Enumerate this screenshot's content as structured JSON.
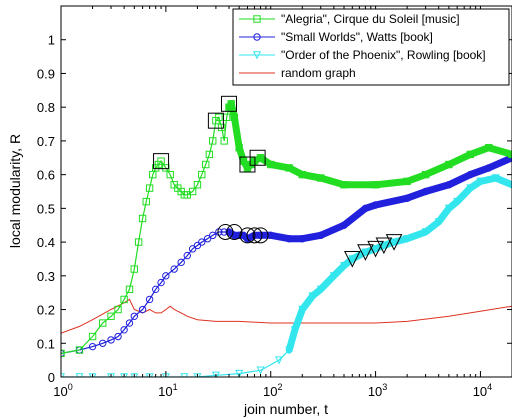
{
  "chart_data": {
    "type": "line",
    "xlabel": "join number, t",
    "ylabel": "local modularity, R",
    "xscale": "log",
    "xlim": [
      1,
      20000
    ],
    "ylim": [
      0,
      1.1
    ],
    "x_ticks": [
      1,
      10,
      100,
      1000,
      10000
    ],
    "x_tick_labels": [
      {
        "base": "10",
        "exp": "0"
      },
      {
        "base": "10",
        "exp": "1"
      },
      {
        "base": "10",
        "exp": "2"
      },
      {
        "base": "10",
        "exp": "3"
      },
      {
        "base": "10",
        "exp": "4"
      }
    ],
    "y_ticks": [
      0,
      0.1,
      0.2,
      0.3,
      0.4,
      0.5,
      0.6,
      0.7,
      0.8,
      0.9,
      1
    ],
    "y_tick_labels": [
      "0",
      "0.1",
      "0.2",
      "0.3",
      "0.4",
      "0.5",
      "0.6",
      "0.7",
      "0.8",
      "0.9",
      "1"
    ],
    "grid": false,
    "legend_position": "top-right",
    "series": [
      {
        "name": "\"Alegria\", Cirque du Soleil [music]",
        "color": "#22dd22",
        "marker": "square",
        "points": [
          [
            1,
            0.07
          ],
          [
            1.5,
            0.08
          ],
          [
            2,
            0.12
          ],
          [
            2.5,
            0.16
          ],
          [
            3,
            0.18
          ],
          [
            3.5,
            0.2
          ],
          [
            4,
            0.23
          ],
          [
            4.5,
            0.26
          ],
          [
            5,
            0.32
          ],
          [
            5.5,
            0.4
          ],
          [
            6,
            0.47
          ],
          [
            6.5,
            0.52
          ],
          [
            7,
            0.56
          ],
          [
            7.5,
            0.6
          ],
          [
            8,
            0.62
          ],
          [
            8.5,
            0.63
          ],
          [
            9,
            0.64
          ],
          [
            10,
            0.62
          ],
          [
            11,
            0.6
          ],
          [
            12,
            0.57
          ],
          [
            13,
            0.56
          ],
          [
            14,
            0.55
          ],
          [
            15,
            0.54
          ],
          [
            16,
            0.54
          ],
          [
            18,
            0.55
          ],
          [
            20,
            0.57
          ],
          [
            22,
            0.6
          ],
          [
            24,
            0.63
          ],
          [
            26,
            0.66
          ],
          [
            28,
            0.7
          ],
          [
            30,
            0.76
          ],
          [
            32,
            0.77
          ],
          [
            34,
            0.74
          ],
          [
            36,
            0.7
          ],
          [
            38,
            0.77
          ],
          [
            40,
            0.8
          ],
          [
            42,
            0.81
          ],
          [
            45,
            0.77
          ],
          [
            50,
            0.68
          ],
          [
            55,
            0.64
          ],
          [
            60,
            0.62
          ],
          [
            65,
            0.63
          ],
          [
            70,
            0.64
          ],
          [
            80,
            0.65
          ],
          [
            100,
            0.63
          ],
          [
            150,
            0.62
          ],
          [
            200,
            0.6
          ],
          [
            300,
            0.59
          ],
          [
            500,
            0.57
          ],
          [
            1000,
            0.57
          ],
          [
            2000,
            0.58
          ],
          [
            3000,
            0.6
          ],
          [
            5000,
            0.63
          ],
          [
            8000,
            0.66
          ],
          [
            12000,
            0.68
          ],
          [
            20000,
            0.66
          ]
        ],
        "highlights": [
          [
            9,
            0.64
          ],
          [
            30,
            0.76
          ],
          [
            40,
            0.81
          ],
          [
            60,
            0.63
          ],
          [
            75,
            0.65
          ]
        ]
      },
      {
        "name": "\"Small Worlds\", Watts [book]",
        "color": "#2020dd",
        "marker": "circle",
        "points": [
          [
            1,
            0.07
          ],
          [
            1.5,
            0.08
          ],
          [
            2,
            0.09
          ],
          [
            2.5,
            0.1
          ],
          [
            3,
            0.11
          ],
          [
            3.5,
            0.12
          ],
          [
            4,
            0.14
          ],
          [
            4.5,
            0.16
          ],
          [
            5,
            0.18
          ],
          [
            6,
            0.2
          ],
          [
            7,
            0.23
          ],
          [
            8,
            0.26
          ],
          [
            9,
            0.28
          ],
          [
            10,
            0.3
          ],
          [
            12,
            0.32
          ],
          [
            14,
            0.34
          ],
          [
            16,
            0.36
          ],
          [
            18,
            0.38
          ],
          [
            20,
            0.39
          ],
          [
            22,
            0.4
          ],
          [
            25,
            0.41
          ],
          [
            28,
            0.42
          ],
          [
            32,
            0.43
          ],
          [
            36,
            0.43
          ],
          [
            40,
            0.43
          ],
          [
            45,
            0.42
          ],
          [
            50,
            0.42
          ],
          [
            55,
            0.42
          ],
          [
            60,
            0.41
          ],
          [
            70,
            0.42
          ],
          [
            80,
            0.42
          ],
          [
            100,
            0.42
          ],
          [
            150,
            0.41
          ],
          [
            200,
            0.41
          ],
          [
            300,
            0.42
          ],
          [
            500,
            0.45
          ],
          [
            800,
            0.5
          ],
          [
            1000,
            0.51
          ],
          [
            2000,
            0.53
          ],
          [
            3000,
            0.55
          ],
          [
            5000,
            0.57
          ],
          [
            8000,
            0.6
          ],
          [
            12000,
            0.62
          ],
          [
            20000,
            0.65
          ]
        ],
        "highlights": [
          [
            37,
            0.43
          ],
          [
            45,
            0.43
          ],
          [
            60,
            0.42
          ],
          [
            70,
            0.42
          ],
          [
            80,
            0.42
          ]
        ]
      },
      {
        "name": "\"Order of the Phoenix\", Rowling [book]",
        "color": "#33e6ee",
        "marker": "triangle-down",
        "points": [
          [
            1,
            0
          ],
          [
            1.5,
            0
          ],
          [
            2,
            0
          ],
          [
            3,
            0
          ],
          [
            4,
            0
          ],
          [
            5,
            0
          ],
          [
            7,
            0
          ],
          [
            10,
            0
          ],
          [
            15,
            0
          ],
          [
            20,
            0
          ],
          [
            30,
            0.005
          ],
          [
            50,
            0.01
          ],
          [
            80,
            0.02
          ],
          [
            120,
            0.05
          ],
          [
            150,
            0.08
          ],
          [
            170,
            0.14
          ],
          [
            200,
            0.2
          ],
          [
            250,
            0.24
          ],
          [
            300,
            0.26
          ],
          [
            400,
            0.3
          ],
          [
            500,
            0.33
          ],
          [
            600,
            0.35
          ],
          [
            800,
            0.37
          ],
          [
            1000,
            0.38
          ],
          [
            1200,
            0.39
          ],
          [
            1500,
            0.4
          ],
          [
            2000,
            0.41
          ],
          [
            3000,
            0.43
          ],
          [
            4000,
            0.46
          ],
          [
            5000,
            0.5
          ],
          [
            6000,
            0.52
          ],
          [
            8000,
            0.56
          ],
          [
            10000,
            0.58
          ],
          [
            14000,
            0.59
          ],
          [
            20000,
            0.57
          ]
        ],
        "highlights": [
          [
            600,
            0.35
          ],
          [
            800,
            0.37
          ],
          [
            1000,
            0.38
          ],
          [
            1200,
            0.39
          ],
          [
            1500,
            0.4
          ]
        ]
      },
      {
        "name": "random graph",
        "color": "#dd3322",
        "marker": "none",
        "points": [
          [
            1,
            0.13
          ],
          [
            1.5,
            0.15
          ],
          [
            2,
            0.17
          ],
          [
            3,
            0.2
          ],
          [
            4,
            0.22
          ],
          [
            4.5,
            0.23
          ],
          [
            5,
            0.2
          ],
          [
            6,
            0.19
          ],
          [
            7,
            0.2
          ],
          [
            8,
            0.19
          ],
          [
            9,
            0.19
          ],
          [
            10,
            0.2
          ],
          [
            11,
            0.21
          ],
          [
            12,
            0.2
          ],
          [
            14,
            0.19
          ],
          [
            16,
            0.18
          ],
          [
            20,
            0.17
          ],
          [
            30,
            0.165
          ],
          [
            50,
            0.165
          ],
          [
            100,
            0.16
          ],
          [
            200,
            0.16
          ],
          [
            500,
            0.16
          ],
          [
            1000,
            0.16
          ],
          [
            2000,
            0.165
          ],
          [
            5000,
            0.18
          ],
          [
            10000,
            0.195
          ],
          [
            20000,
            0.21
          ]
        ]
      }
    ]
  }
}
